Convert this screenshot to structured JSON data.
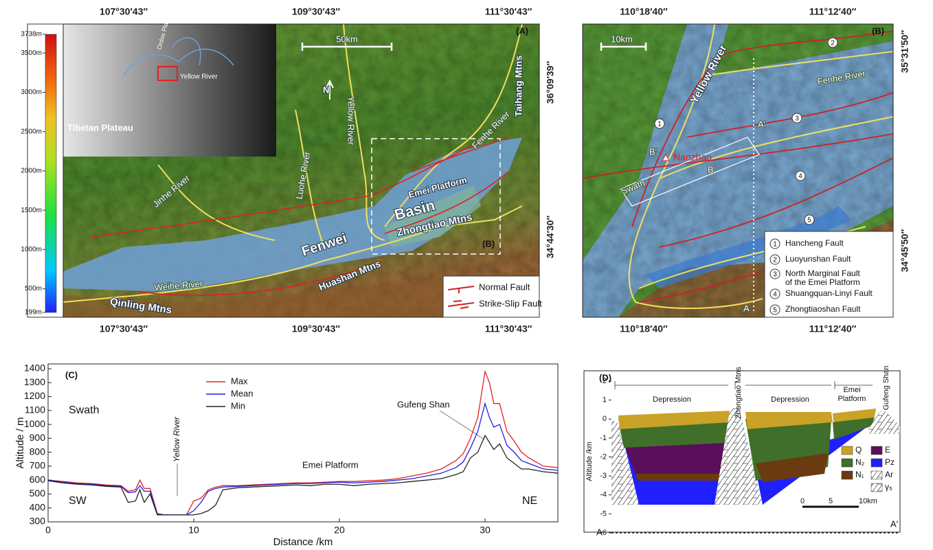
{
  "panel_a": {
    "label": "(A)",
    "scale": "50km",
    "north": "N",
    "colorbar": [
      {
        "value": 3738,
        "label": "3738m"
      },
      {
        "value": 3500,
        "label": "3500m"
      },
      {
        "value": 3000,
        "label": "3000m"
      },
      {
        "value": 2500,
        "label": "2500m"
      },
      {
        "value": 2000,
        "label": "2000m"
      },
      {
        "value": 1500,
        "label": "1500m"
      },
      {
        "value": 1000,
        "label": "1000m"
      },
      {
        "value": 500,
        "label": "500m"
      },
      {
        "value": 199,
        "label": "199m"
      }
    ],
    "inset_labels": [
      "Tibetan Plateau",
      "Ordos Plateau",
      "Yellow River"
    ],
    "labels": [
      "Luohe River",
      "Yellow River",
      "Fenhe River",
      "Taihang Mtns",
      "Emei Platform",
      "Basin",
      "Fenwei",
      "Zhongtiao Mtns",
      "(B)",
      "Jinhe River",
      "Weihe River",
      "Huashan Mtns",
      "Qinling Mtns"
    ],
    "legend": [
      "Normal Fault",
      "Strike-Slip Fault"
    ],
    "lon": [
      "107°30′43″",
      "109°30′43″",
      "111°30′43″"
    ],
    "lat": [
      "36°09′39″",
      "34°44′30″"
    ]
  },
  "panel_b": {
    "label": "(B)",
    "scale": "10km",
    "labels": [
      "Yellow River",
      "Fenhe River",
      "Nanzhao",
      "Swath",
      "B′",
      "B",
      "A′",
      "A"
    ],
    "faults": [
      {
        "number": "1",
        "lines": [
          "Hancheng Fault"
        ]
      },
      {
        "number": "2",
        "lines": [
          "Luoyunshan Fault"
        ]
      },
      {
        "number": "3",
        "lines": [
          "North Marginal Fault",
          "of the Emei Platform"
        ]
      },
      {
        "number": "4",
        "lines": [
          "Shuangquan-Linyi Fault"
        ]
      },
      {
        "number": "5",
        "lines": [
          "Zhongtiaoshan Fault"
        ]
      }
    ],
    "lon": [
      "110°18′40″",
      "111°12′40″"
    ],
    "lat": [
      "35°31′50″",
      "34°45′50″"
    ]
  },
  "chart_data": {
    "type": "line",
    "panel_label": "(C)",
    "xlabel": "Distance /km",
    "ylabel": "Altitude / m",
    "annotations": [
      "Swath",
      "SW",
      "NE",
      "Yellow River",
      "Emei Platform",
      "Gufeng Shan"
    ],
    "x": [
      0,
      1,
      2,
      3,
      4,
      5,
      5.5,
      6,
      6.3,
      6.6,
      7,
      7.5,
      8,
      8.5,
      9,
      9.5,
      10,
      10.5,
      11,
      11.5,
      12,
      13,
      14,
      15,
      16,
      17,
      18,
      19,
      20,
      21,
      22,
      23,
      24,
      25,
      26,
      27,
      28,
      28.5,
      29,
      29.5,
      30,
      30.3,
      30.6,
      31,
      31.5,
      32,
      32.5,
      33,
      34,
      35
    ],
    "series": [
      {
        "name": "Max",
        "color": "#e02020",
        "values": [
          600,
          590,
          580,
          575,
          565,
          560,
          520,
          530,
          600,
          540,
          540,
          360,
          350,
          350,
          350,
          350,
          450,
          470,
          530,
          550,
          560,
          560,
          565,
          570,
          575,
          580,
          580,
          585,
          590,
          590,
          595,
          600,
          610,
          630,
          650,
          680,
          740,
          790,
          900,
          1050,
          1380,
          1300,
          1150,
          1150,
          950,
          880,
          800,
          760,
          700,
          690
        ]
      },
      {
        "name": "Mean",
        "color": "#2020e0",
        "values": [
          600,
          585,
          575,
          570,
          560,
          555,
          510,
          515,
          560,
          520,
          520,
          355,
          350,
          350,
          350,
          350,
          380,
          440,
          520,
          540,
          550,
          555,
          560,
          565,
          570,
          575,
          575,
          580,
          585,
          580,
          585,
          590,
          600,
          610,
          630,
          650,
          690,
          730,
          830,
          950,
          1150,
          1050,
          980,
          1000,
          850,
          800,
          740,
          720,
          680,
          670
        ]
      },
      {
        "name": "Min",
        "color": "#222222",
        "values": [
          595,
          580,
          570,
          565,
          555,
          550,
          440,
          450,
          530,
          440,
          500,
          350,
          350,
          350,
          350,
          350,
          350,
          360,
          380,
          420,
          530,
          545,
          550,
          555,
          560,
          565,
          560,
          570,
          570,
          560,
          570,
          575,
          580,
          590,
          600,
          610,
          640,
          660,
          760,
          800,
          920,
          870,
          820,
          860,
          760,
          720,
          680,
          680,
          660,
          650
        ]
      }
    ],
    "xlim": [
      0,
      35
    ],
    "xticks": [
      0,
      10,
      20,
      30
    ],
    "ylim": [
      300,
      1400
    ],
    "yticks": [
      300,
      400,
      500,
      600,
      700,
      800,
      900,
      1000,
      1100,
      1200,
      1300,
      1400
    ]
  },
  "panel_d": {
    "label": "(D)",
    "ylabel": "Altitude /km",
    "yticks": [
      2,
      1,
      0,
      -1,
      -2,
      -3,
      -4,
      -5,
      -6
    ],
    "headers": [
      "Depression",
      "Zhongtiao Mtns",
      "Depression",
      [
        "Emei",
        "Platform"
      ],
      "Gufeng Shan"
    ],
    "ends": [
      "A",
      "A′"
    ],
    "scale": [
      "0",
      "5",
      "10km"
    ],
    "legend": [
      {
        "label": "Q",
        "color": "#c9a227"
      },
      {
        "label": "N₂",
        "color": "#3f6f2a"
      },
      {
        "label": "N₁",
        "color": "#6a3a10"
      },
      {
        "label": "E",
        "color": "#5a0f5a"
      },
      {
        "label": "Pz",
        "color": "#2020ff"
      },
      {
        "label": "Ar",
        "color": "hatch"
      },
      {
        "label": "γ₅",
        "color": "hatch"
      }
    ]
  }
}
